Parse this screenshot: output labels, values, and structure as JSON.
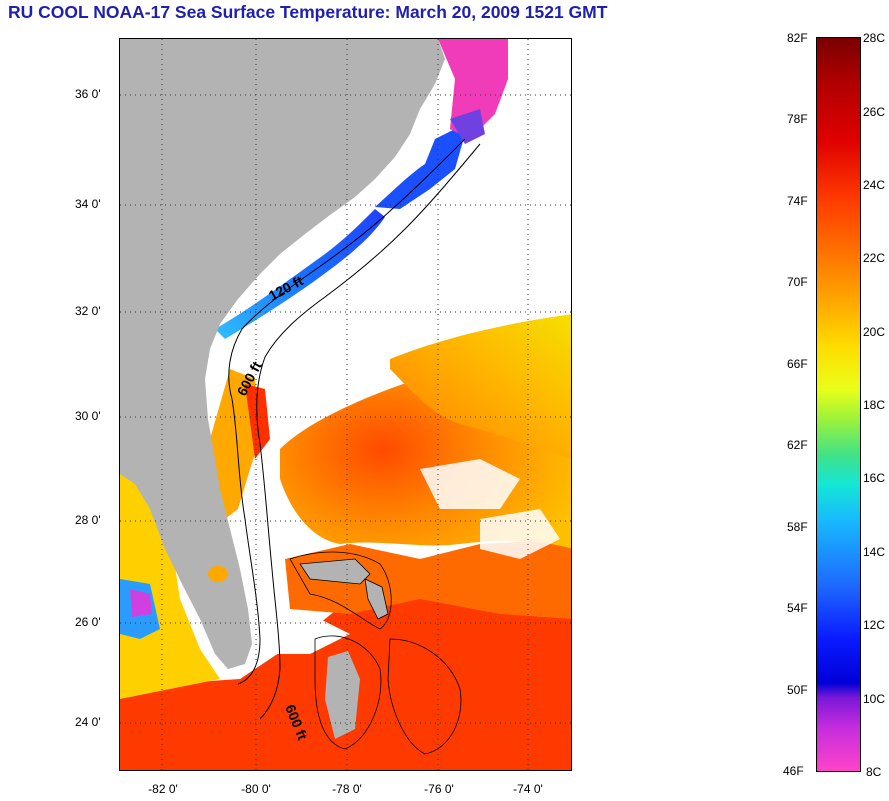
{
  "title": "RU COOL  NOAA-17  Sea Surface Temperature:  March 20, 2009 1521 GMT",
  "map": {
    "latitude_labels": [
      "36 0'",
      "34 0'",
      "32 0'",
      "30 0'",
      "28 0'",
      "26 0'",
      "24 0'"
    ],
    "longitude_labels": [
      "-82 0'",
      "-80 0'",
      "-78 0'",
      "-76 0'",
      "-74 0'"
    ],
    "contour_labels": [
      "120 ft",
      "600 ft",
      "600 ft"
    ],
    "colors": {
      "land": "#b3b3b3",
      "cloud": "#ffffff",
      "grid": "#333333",
      "contour": "#000000"
    }
  },
  "colorbar": {
    "fahrenheit_labels": [
      "82F",
      "78F",
      "74F",
      "70F",
      "66F",
      "62F",
      "58F",
      "54F",
      "50F",
      "46F"
    ],
    "celsius_labels": [
      "28C",
      "26C",
      "24C",
      "22C",
      "20C",
      "18C",
      "16C",
      "14C",
      "12C",
      "10C",
      "8C"
    ],
    "range_f": [
      46,
      82
    ],
    "range_c": [
      8,
      28
    ]
  }
}
